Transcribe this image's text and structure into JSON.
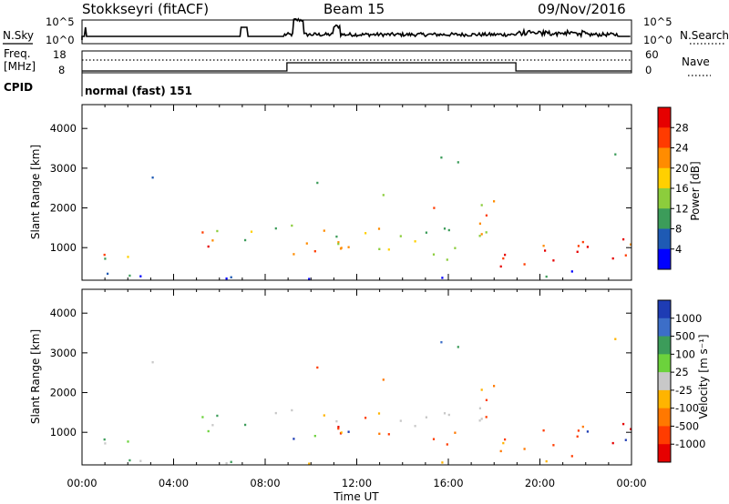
{
  "header": {
    "station": "Stokkseyri (fitACF)",
    "beam": "Beam 15",
    "date": "09/Nov/2016"
  },
  "top_panel": {
    "left_label": "N.Sky",
    "right_label": "N.Search",
    "left_ticks": [
      "10^5",
      "10^0"
    ],
    "right_ticks": [
      "10^5",
      "10^0"
    ]
  },
  "freq_panel": {
    "left_label_1": "Freq.",
    "left_label_2": "[MHz]",
    "right_label": "Nave",
    "left_ticks": [
      "18",
      "8"
    ],
    "right_ticks": [
      "60",
      "0"
    ]
  },
  "cpid": {
    "label": "CPID",
    "mode": "normal (fast) 151"
  },
  "chart_data": [
    {
      "type": "heatmap",
      "panel": "power",
      "ylabel": "Slant Range [km]",
      "xlabel": "Time UT",
      "xlim": [
        "00:00",
        "24:00"
      ],
      "ylim": [
        180,
        4600
      ],
      "x_ticks": [
        "00:00",
        "04:00",
        "08:00",
        "12:00",
        "16:00",
        "20:00",
        "00:00"
      ],
      "y_ticks": [
        "1000",
        "2000",
        "3000",
        "4000"
      ],
      "colorbar": {
        "label": "Power [dB]",
        "ticks": [
          "28",
          "24",
          "20",
          "16",
          "12",
          "8",
          "4"
        ],
        "colors": [
          "#e60000",
          "#ff3b00",
          "#ff8c00",
          "#ffd000",
          "#8ccd3c",
          "#3c9c5a",
          "#1e5ab4",
          "#0000ff"
        ]
      }
    },
    {
      "type": "heatmap",
      "panel": "velocity",
      "ylabel": "Slant Range [km]",
      "xlabel": "Time UT",
      "xlim": [
        "00:00",
        "24:00"
      ],
      "ylim": [
        180,
        4600
      ],
      "x_ticks": [
        "00:00",
        "04:00",
        "08:00",
        "12:00",
        "16:00",
        "20:00",
        "00:00"
      ],
      "y_ticks": [
        "1000",
        "2000",
        "3000",
        "4000"
      ],
      "colorbar": {
        "label": "Velocity [m s⁻¹]",
        "ticks": [
          "1000",
          "500",
          "100",
          "25",
          "-25",
          "-100",
          "-500",
          "-1000"
        ],
        "colors": [
          "#1e3cb4",
          "#3c6ec8",
          "#3c9c5a",
          "#6cd23c",
          "#c8c8c8",
          "#ffb400",
          "#ff7800",
          "#ff3c00",
          "#e60000"
        ]
      }
    }
  ],
  "x_axis_label": "Time UT"
}
